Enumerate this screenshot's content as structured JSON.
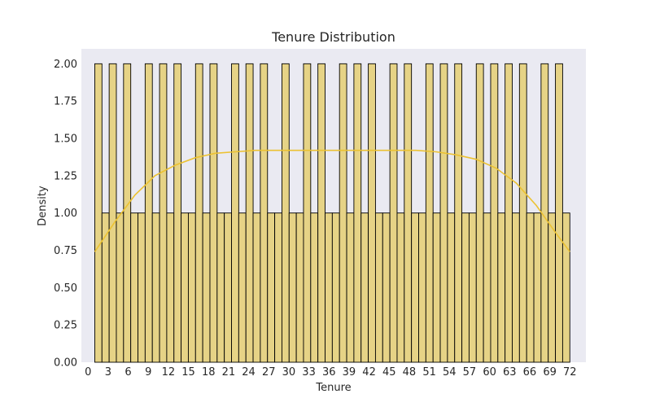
{
  "chart_data": {
    "type": "bar",
    "title": "Tenure Distribution",
    "xlabel": "Tenure",
    "ylabel": "Density",
    "xlim": [
      -1,
      74.4
    ],
    "ylim": [
      0,
      2.1
    ],
    "x_ticks": [
      0,
      3,
      6,
      9,
      12,
      15,
      18,
      21,
      24,
      27,
      30,
      33,
      36,
      39,
      42,
      45,
      48,
      51,
      54,
      57,
      60,
      63,
      66,
      69,
      72
    ],
    "y_ticks": [
      0.0,
      0.25,
      0.5,
      0.75,
      1.0,
      1.25,
      1.5,
      1.75,
      2.0
    ],
    "y_tick_labels": [
      "0.00",
      "0.25",
      "0.50",
      "0.75",
      "1.00",
      "1.25",
      "1.50",
      "1.75",
      "2.00"
    ],
    "bin_range": [
      1,
      72
    ],
    "values": [
      2,
      1,
      2,
      1,
      2,
      1,
      1,
      2,
      1,
      2,
      1,
      2,
      1,
      1,
      2,
      1,
      2,
      1,
      1,
      2,
      1,
      2,
      1,
      2,
      1,
      1,
      2,
      1,
      1,
      2,
      1,
      2,
      1,
      1,
      2,
      1,
      2,
      1,
      2,
      1,
      1,
      2,
      1,
      2,
      1,
      1,
      2,
      1,
      2,
      1,
      2,
      1,
      1,
      2,
      1,
      2,
      1,
      2,
      1,
      2,
      1,
      1,
      2,
      1,
      2,
      1
    ],
    "kde": {
      "x": [
        1,
        4,
        7,
        10,
        13,
        16,
        19,
        22,
        25,
        28,
        31,
        34,
        37,
        40,
        43,
        46,
        49,
        52,
        55,
        58,
        61,
        64,
        67,
        70,
        72
      ],
      "y": [
        0.74,
        0.94,
        1.12,
        1.25,
        1.32,
        1.37,
        1.4,
        1.41,
        1.42,
        1.42,
        1.42,
        1.42,
        1.42,
        1.42,
        1.42,
        1.42,
        1.42,
        1.41,
        1.39,
        1.36,
        1.3,
        1.2,
        1.05,
        0.86,
        0.74
      ]
    },
    "grid": false,
    "colors": {
      "bar_fill": "#e6d386",
      "bar_edge": "#000000",
      "kde_line": "#ecc232",
      "plot_bg": "#eaeaf2"
    }
  }
}
